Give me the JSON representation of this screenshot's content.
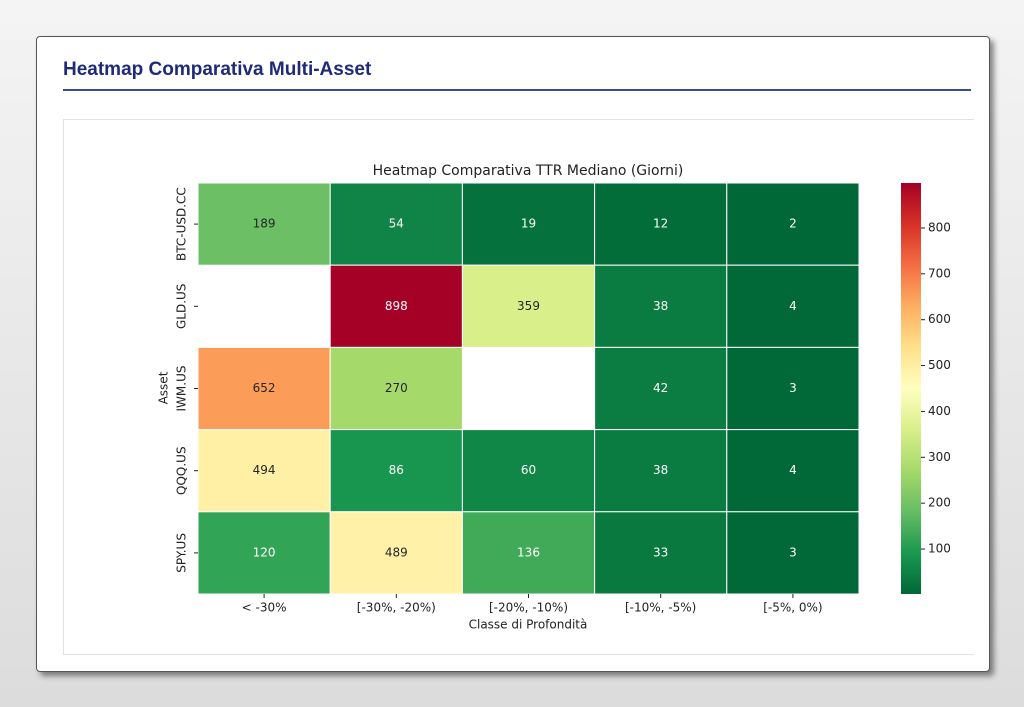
{
  "header": {
    "title": "Heatmap Comparativa Multi-Asset"
  },
  "chart_data": {
    "type": "heatmap",
    "title": "Heatmap Comparativa TTR Mediano (Giorni)",
    "x_label": "Classe di Profondità",
    "y_label": "Asset",
    "x_categories": [
      "< -30%",
      "[-30%, -20%)",
      "[-20%, -10%)",
      "[-10%, -5%)",
      "[-5%, 0%)"
    ],
    "y_categories": [
      "BTC-USD.CC",
      "GLD.US",
      "IWM.US",
      "QQQ.US",
      "SPY.US"
    ],
    "values": [
      [
        189,
        54,
        19,
        12,
        2
      ],
      [
        null,
        898,
        359,
        38,
        4
      ],
      [
        652,
        270,
        null,
        42,
        3
      ],
      [
        494,
        86,
        60,
        38,
        4
      ],
      [
        120,
        489,
        136,
        33,
        3
      ]
    ],
    "clim": [
      2,
      898
    ],
    "colorbar_ticks": [
      100,
      200,
      300,
      400,
      500,
      600,
      700,
      800
    ],
    "colorscale": [
      "#006837",
      "#1a9850",
      "#66bd63",
      "#a6d96a",
      "#d9ef8b",
      "#ffffbf",
      "#fee08b",
      "#fdae61",
      "#f46d43",
      "#d73027",
      "#a50026"
    ]
  }
}
